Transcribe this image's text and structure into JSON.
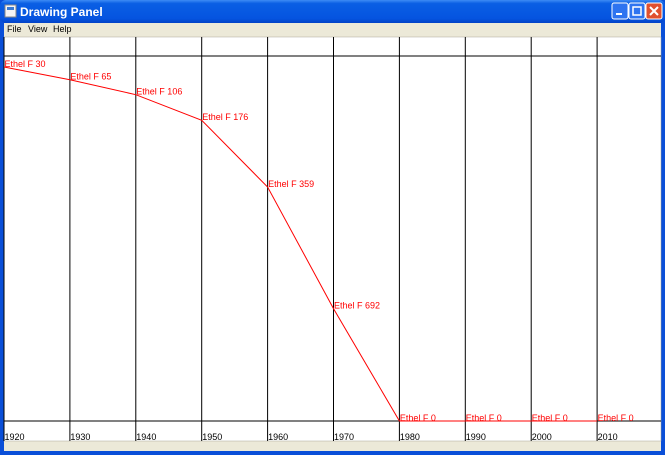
{
  "window": {
    "title": "Drawing Panel",
    "menu": [
      "File",
      "View",
      "Help"
    ]
  },
  "chart_data": {
    "type": "line",
    "categories": [
      "1920",
      "1930",
      "1940",
      "1950",
      "1960",
      "1970",
      "1980",
      "1990",
      "2000",
      "2010"
    ],
    "series": [
      {
        "name": "Ethel F",
        "color": "#ff0000",
        "values": [
          30,
          65,
          106,
          176,
          359,
          692,
          0,
          0,
          0,
          0
        ],
        "value_labels": [
          "Ethel F 30",
          "Ethel F 65",
          "Ethel F 106",
          "Ethel F 176",
          "Ethel F 359",
          "Ethel F 692",
          "Ethel F 0",
          "Ethel F 0",
          "Ethel F 0",
          "Ethel F 0"
        ]
      }
    ],
    "ylim": [
      0,
      1000
    ]
  }
}
